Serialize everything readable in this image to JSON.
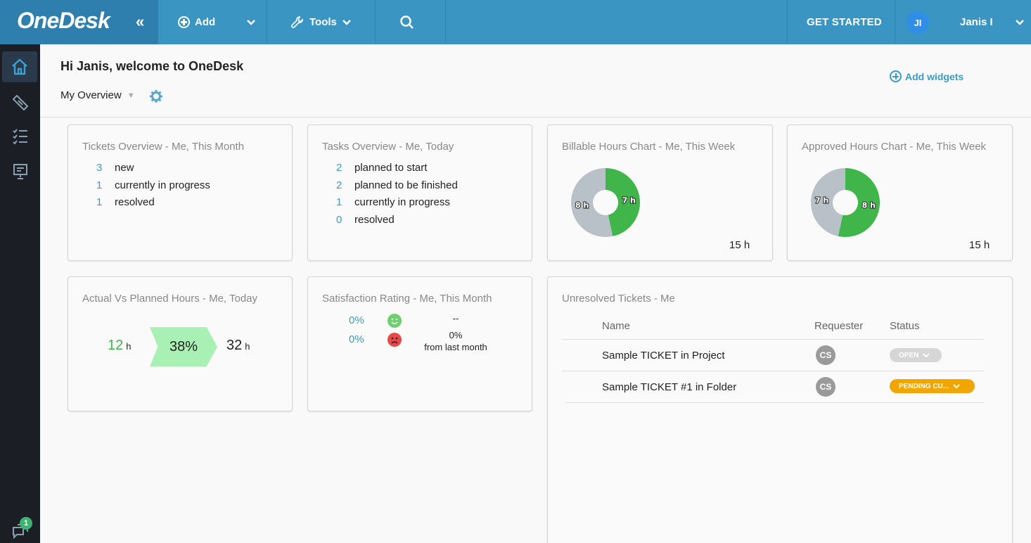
{
  "topbar": {
    "logo": "OneDesk",
    "add_label": "Add",
    "tools_label": "Tools",
    "get_started_label": "GET STARTED",
    "user_initials": "JI",
    "user_name": "Janis I"
  },
  "sidebar": {
    "items": [
      "home-icon",
      "tickets-icon",
      "tasks-icon",
      "projects-icon"
    ],
    "chat_badge": "1"
  },
  "header": {
    "welcome": "Hi Janis, welcome to OneDesk",
    "overview_selected": "My Overview",
    "add_widgets_label": "Add widgets"
  },
  "widgets": {
    "tickets": {
      "title": "Tickets Overview - Me, This Month",
      "rows": [
        {
          "num": "3",
          "label": "new"
        },
        {
          "num": "1",
          "label": "currently in progress"
        },
        {
          "num": "1",
          "label": "resolved"
        }
      ]
    },
    "tasks": {
      "title": "Tasks Overview - Me, Today",
      "rows": [
        {
          "num": "2",
          "label": "planned to start"
        },
        {
          "num": "2",
          "label": "planned to be finished"
        },
        {
          "num": "1",
          "label": "currently in progress"
        },
        {
          "num": "0",
          "label": "resolved"
        }
      ]
    },
    "billable": {
      "title": "Billable Hours Chart - Me, This Week",
      "total": "15 h"
    },
    "approved": {
      "title": "Approved Hours Chart - Me, This Week",
      "total": "15 h"
    },
    "actual_vs_planned": {
      "title": "Actual Vs Planned Hours - Me, Today",
      "actual": "12",
      "actual_unit": "h",
      "percent": "38%",
      "planned": "32",
      "planned_unit": "h"
    },
    "satisfaction": {
      "title": "Satisfaction Rating - Me, This Month",
      "positive_pct": "0%",
      "negative_pct": "0%",
      "positive_change": "--",
      "negative_change": "0%",
      "negative_change_note": "from last month"
    },
    "unresolved": {
      "title": "Unresolved Tickets - Me",
      "columns": [
        "Name",
        "Requester",
        "Status"
      ],
      "rows": [
        {
          "name": "Sample TICKET in Project",
          "requester": "CS",
          "status": "OPEN",
          "status_color": "#d6d6d6"
        },
        {
          "name": "Sample TICKET #1 in Folder",
          "requester": "CS",
          "status": "PENDING CU...",
          "status_color": "#f0a500"
        }
      ]
    }
  },
  "chart_data": [
    {
      "type": "pie",
      "title": "Billable Hours Chart - Me, This Week",
      "slices": [
        {
          "label": "7 h",
          "value": 7,
          "color": "#3fb54a"
        },
        {
          "label": "8 h",
          "value": 8,
          "color": "#b8c0c8"
        }
      ]
    },
    {
      "type": "pie",
      "title": "Approved Hours Chart - Me, This Week",
      "slices": [
        {
          "label": "8 h",
          "value": 8,
          "color": "#3fb54a"
        },
        {
          "label": "7 h",
          "value": 7,
          "color": "#b8c0c8"
        }
      ]
    }
  ]
}
